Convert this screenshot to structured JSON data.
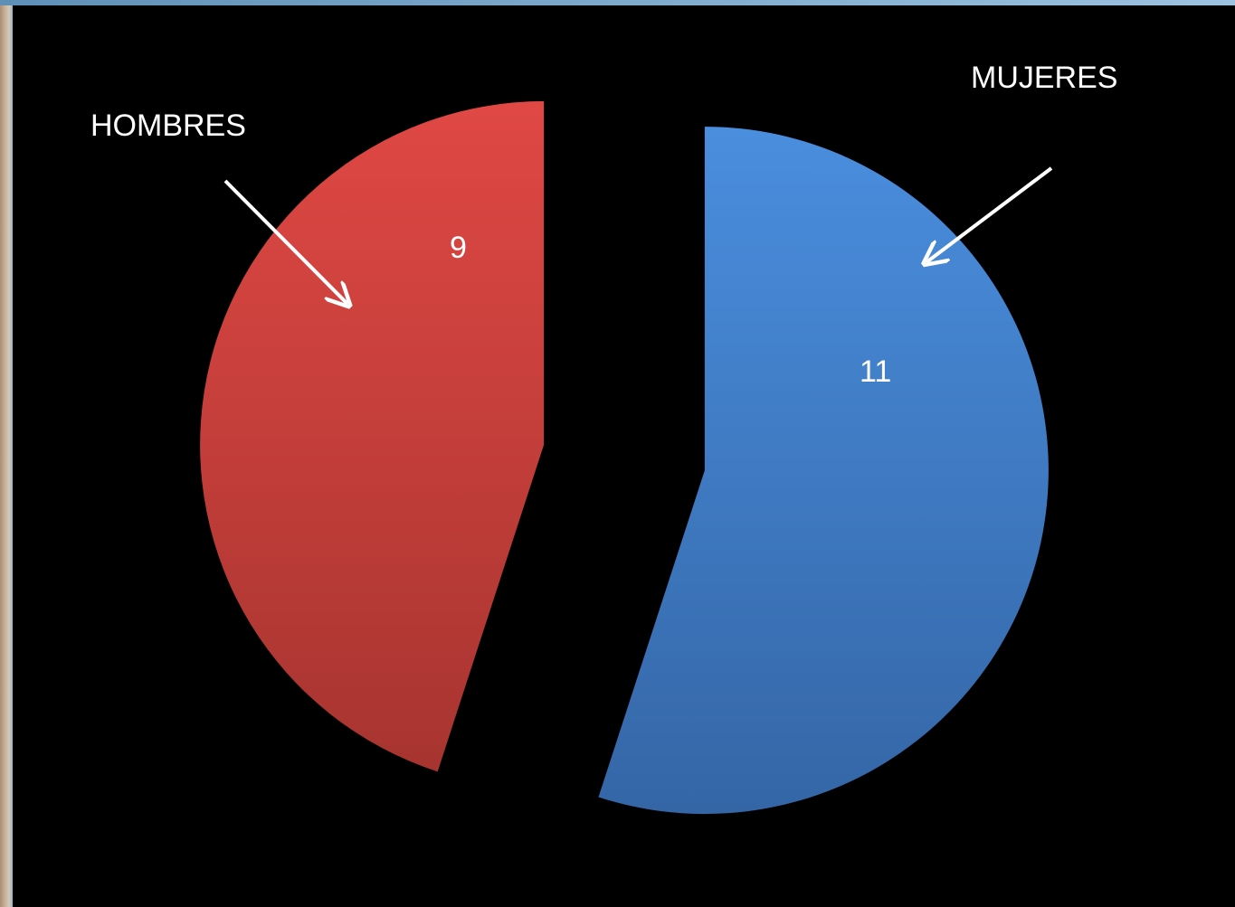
{
  "chart_data": {
    "type": "pie",
    "title": "",
    "series": [
      {
        "name": "HOMBRES",
        "value": 9,
        "color": "#c8403c"
      },
      {
        "name": "MUJERES",
        "value": 11,
        "color": "#3f7bc5"
      }
    ],
    "data_labels": [
      "9",
      "11"
    ],
    "legend": "none",
    "exploded": true
  },
  "colors": {
    "background": "#000000",
    "label_text": "#ffffff",
    "frame": "#6f98b8"
  }
}
